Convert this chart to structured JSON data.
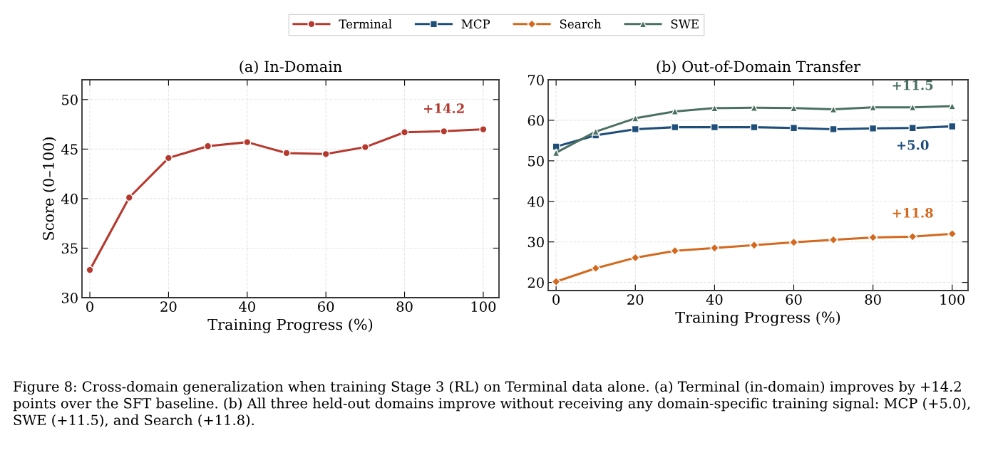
{
  "chart_data": [
    {
      "type": "line",
      "title": "(a) In-Domain",
      "xlabel": "Training Progress (%)",
      "ylabel": "Score (0–100)",
      "x": [
        0,
        10,
        20,
        30,
        40,
        50,
        60,
        70,
        80,
        90,
        100
      ],
      "series": [
        {
          "name": "Terminal",
          "color": "#b5392e",
          "marker": "circle",
          "values": [
            32.8,
            40.1,
            44.1,
            45.3,
            45.7,
            44.6,
            44.5,
            45.2,
            46.7,
            46.8,
            47.0
          ]
        }
      ],
      "xlim": [
        -2,
        104
      ],
      "xticks": [
        0,
        20,
        40,
        60,
        80,
        100
      ],
      "ylim": [
        30,
        52
      ],
      "yticks": [
        30,
        35,
        40,
        45,
        50
      ],
      "grid": true,
      "legend": "top",
      "line_style": "solid",
      "annotations": [
        "+14.2"
      ]
    },
    {
      "type": "line",
      "title": "(b) Out-of-Domain Transfer",
      "xlabel": "Training Progress (%)",
      "x": [
        0,
        10,
        20,
        30,
        40,
        50,
        60,
        70,
        80,
        90,
        100
      ],
      "series": [
        {
          "name": "MCP",
          "color": "#1f4e79",
          "marker": "square",
          "values": [
            53.5,
            56.3,
            57.8,
            58.3,
            58.3,
            58.3,
            58.1,
            57.8,
            58.0,
            58.1,
            58.5
          ]
        },
        {
          "name": "Search",
          "color": "#d2691e",
          "marker": "diamond",
          "values": [
            20.2,
            23.5,
            26.1,
            27.8,
            28.5,
            29.2,
            29.9,
            30.5,
            31.1,
            31.3,
            32.0
          ]
        },
        {
          "name": "SWE",
          "color": "#4a7060",
          "marker": "triangle",
          "values": [
            52.0,
            57.2,
            60.5,
            62.2,
            63.0,
            63.1,
            63.0,
            62.7,
            63.2,
            63.2,
            63.5
          ]
        }
      ],
      "xlim": [
        -2,
        104
      ],
      "xticks": [
        0,
        20,
        40,
        60,
        80,
        100
      ],
      "ylim": [
        18,
        70
      ],
      "yticks": [
        20,
        30,
        40,
        50,
        60,
        70
      ],
      "grid": true,
      "legend": "top",
      "line_style": "solid",
      "annotations": [
        "+5.0",
        "+11.8",
        "+11.5",
        "Figure 8: Cross-domain generalization when training Stage 3 (RL) on Terminal data alone. (a) Terminal (in-domain) improves by +14.2 points over the SFT baseline. (b) All three held-out domains improve without receiving any domain-specific training signal: MCP (+5.0), SWE (+11.5), and Search (+11.8)."
      ]
    }
  ]
}
